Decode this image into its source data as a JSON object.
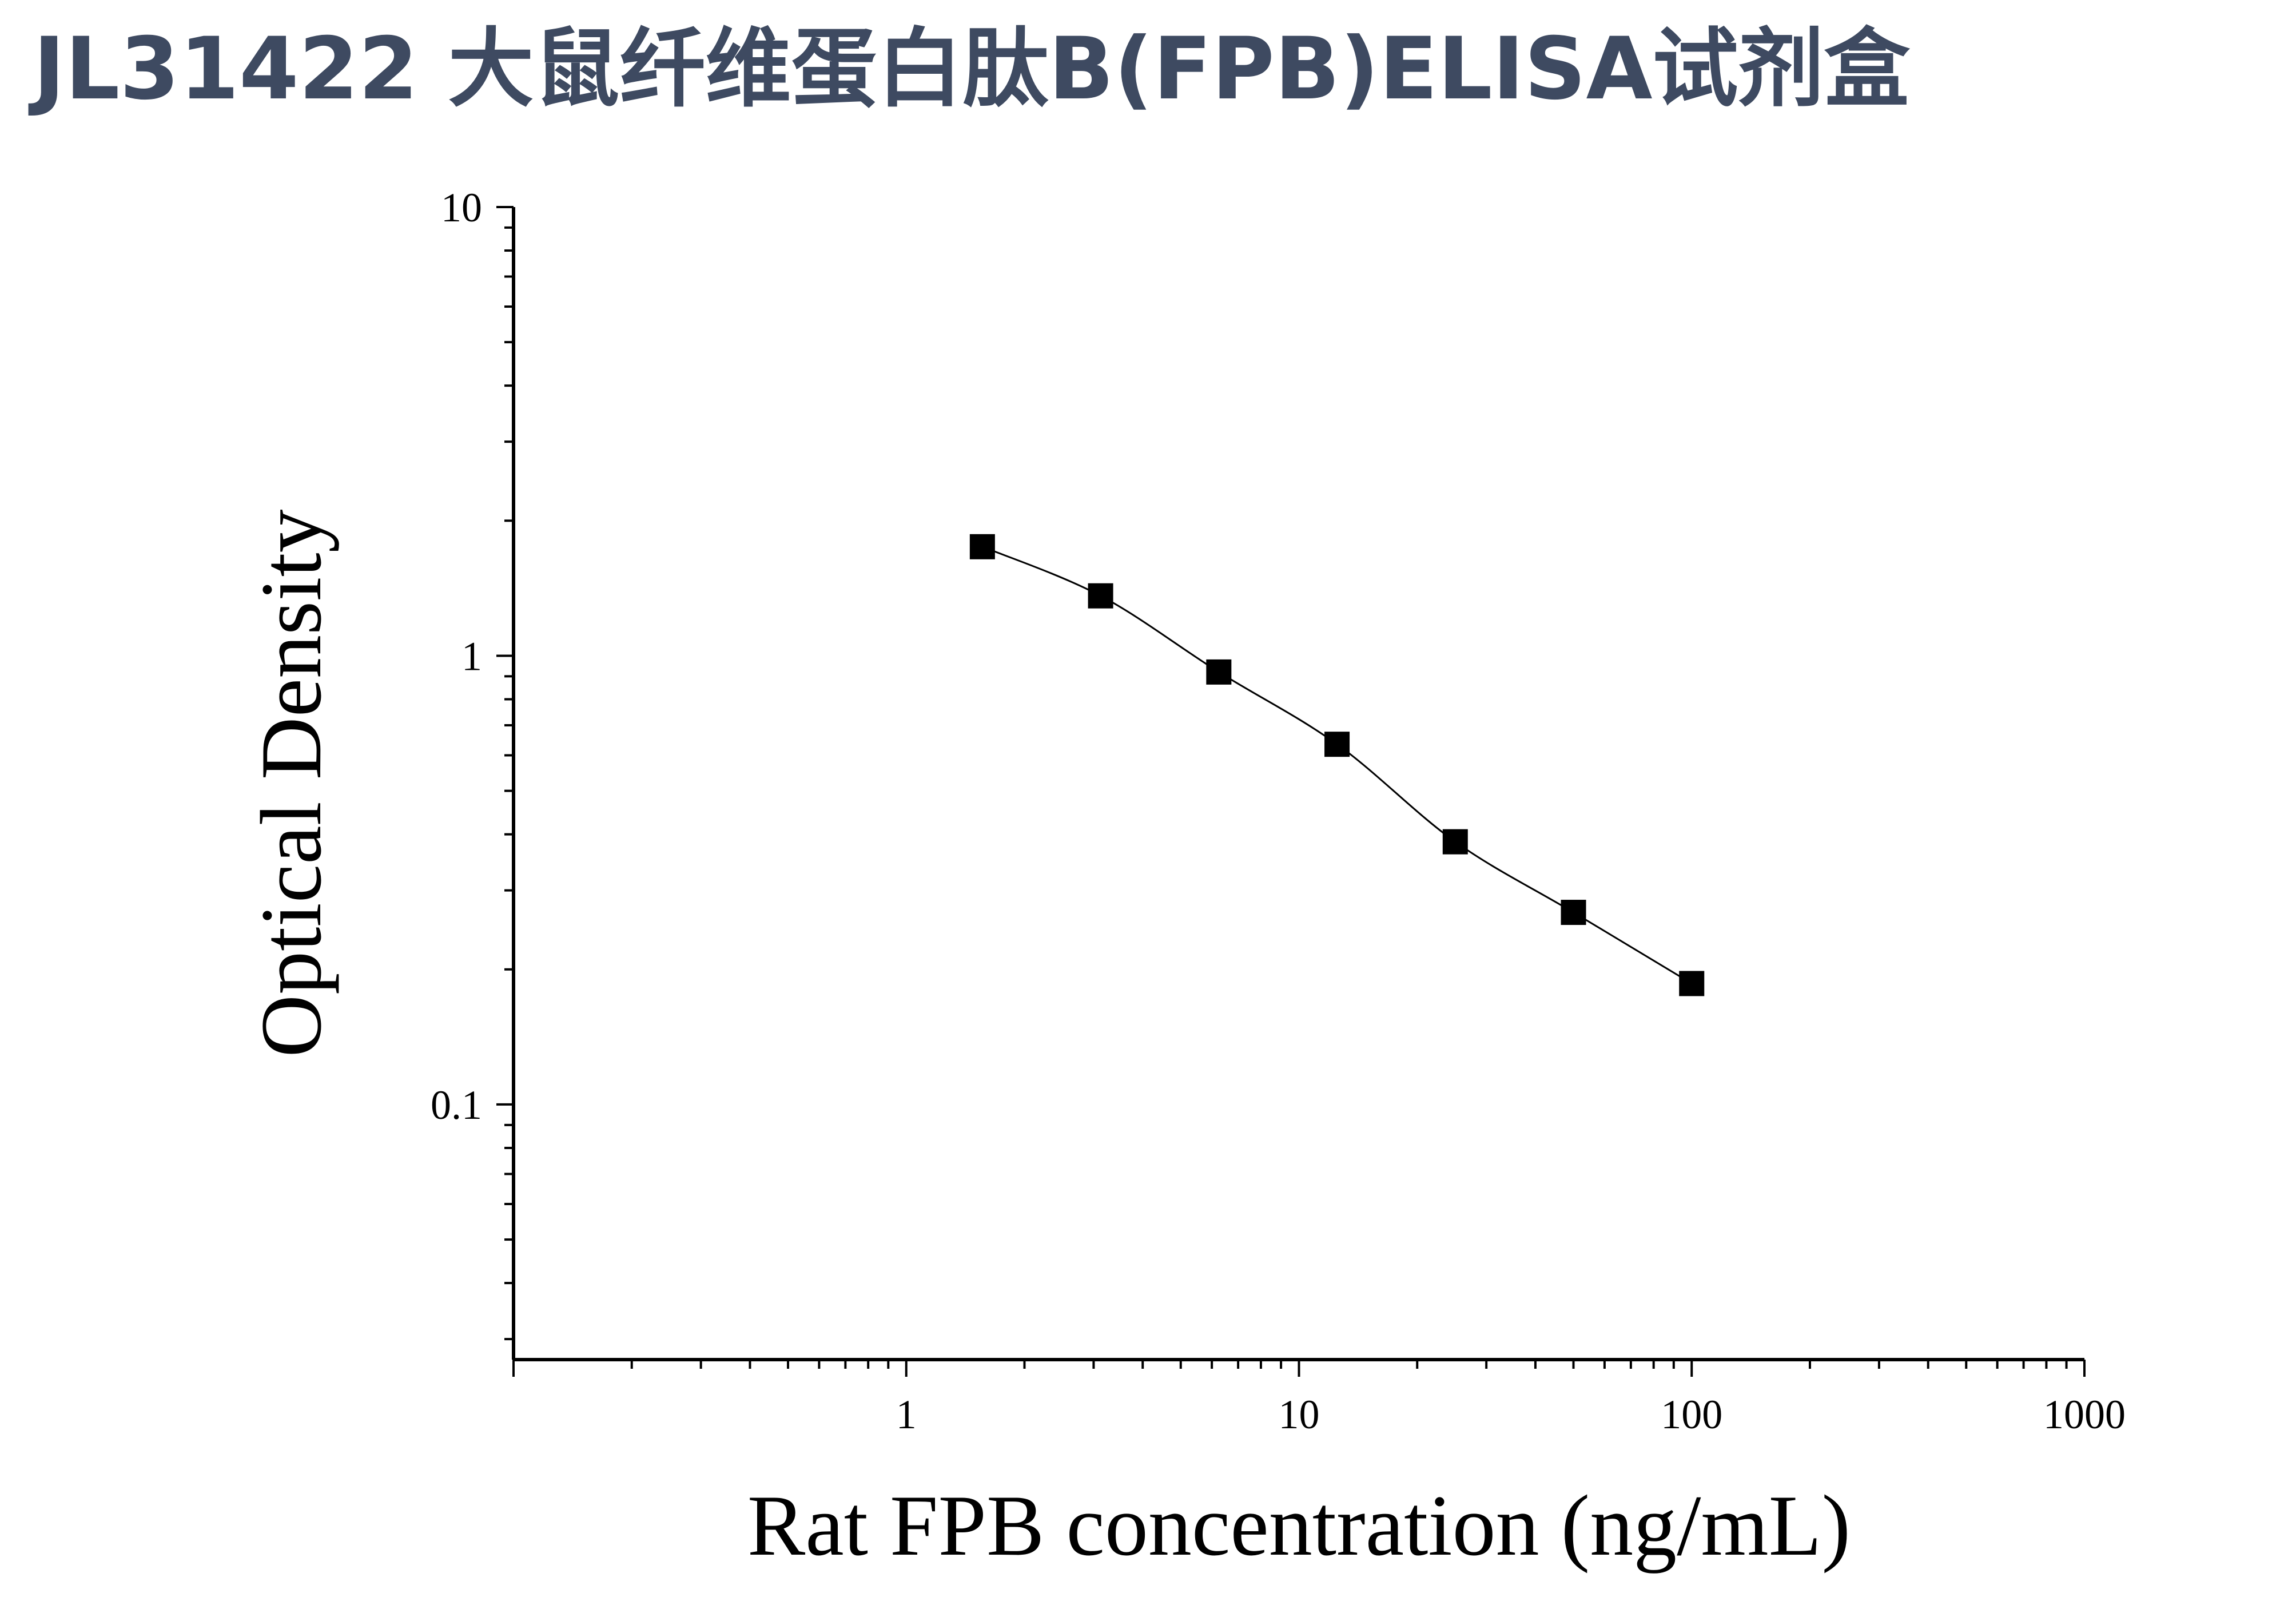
{
  "title": "JL31422 大鼠纤维蛋白肽B(FPB)ELISA试剂盒",
  "colors": {
    "title": "#3e4a61",
    "axis": "#000000",
    "marker": "#000000",
    "curve": "#000000"
  },
  "chart_data": {
    "type": "scatter",
    "title": "JL31422 大鼠纤维蛋白肽B(FPB)ELISA试剂盒",
    "xlabel": "Rat FPB concentration (ng/mL)",
    "ylabel": "Optical Density",
    "xscale": "log",
    "yscale": "log",
    "xlim": [
      0.1,
      1000
    ],
    "ylim": [
      0.027,
      10
    ],
    "xticks": [
      1,
      10,
      100,
      1000
    ],
    "xtick_labels": [
      "1",
      "10",
      "100",
      "1000"
    ],
    "yticks": [
      0.1,
      1,
      10
    ],
    "ytick_labels": [
      "0.1",
      "1",
      "10"
    ],
    "grid": false,
    "legend": "none",
    "marker": "square",
    "fit_line": "smooth curve through points",
    "series": [
      {
        "x": [
          1.5625,
          3.125,
          6.25,
          12.5,
          25,
          50,
          100
        ],
        "y": [
          1.75,
          1.36,
          0.92,
          0.635,
          0.385,
          0.268,
          0.186
        ]
      }
    ]
  }
}
